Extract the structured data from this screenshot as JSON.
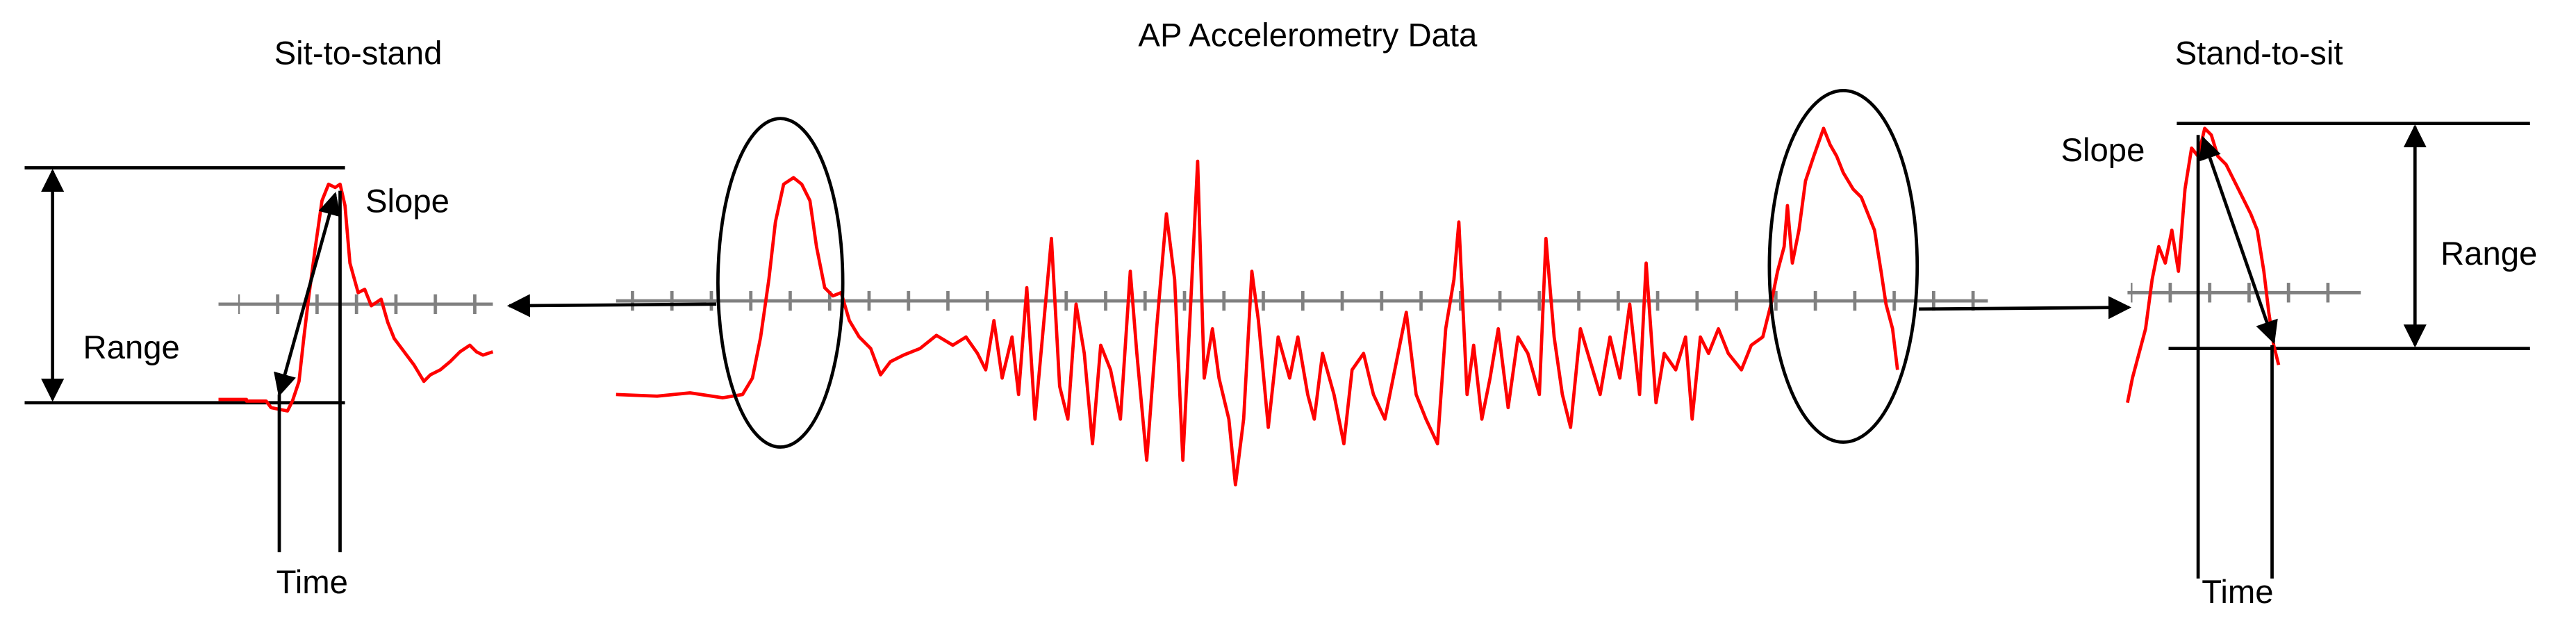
{
  "title": "AP Accelerometry Data",
  "panels": [
    {
      "title": "Sit-to-stand",
      "slope": "Slope",
      "range": "Range",
      "time": "Time"
    },
    {
      "title": "Stand-to-sit",
      "slope": "Slope",
      "range": "Range",
      "time": "Time"
    }
  ]
}
